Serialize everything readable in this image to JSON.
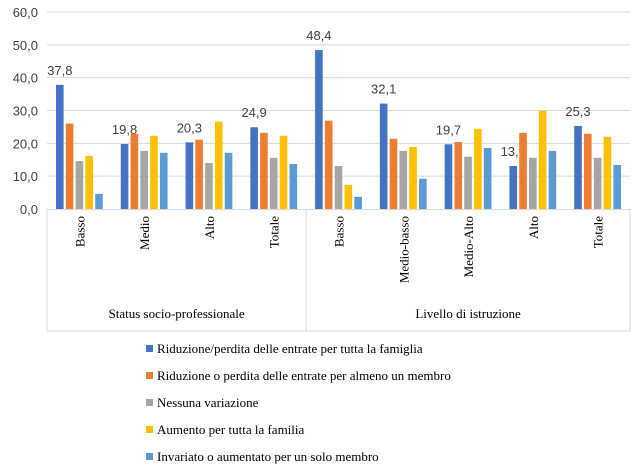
{
  "chart_data": {
    "type": "bar",
    "ylim": [
      0,
      60
    ],
    "yticks": [
      "0,0",
      "10,0",
      "20,0",
      "30,0",
      "40,0",
      "50,0",
      "60,0"
    ],
    "grid": true,
    "legend_placement": "bottom",
    "groups": [
      {
        "label": "Status socio-professionale",
        "categories": [
          "Basso",
          "Medio",
          "Alto",
          "Totale"
        ]
      },
      {
        "label": "Livello di istruzione",
        "categories": [
          "Basso",
          "Medio-basso",
          "Medio-Alto",
          "Alto",
          "Totale"
        ]
      }
    ],
    "series": [
      {
        "name": "Riduzione/perdita delle entrate per tutta la famiglia",
        "color": "#4472C4",
        "values": [
          37.8,
          19.8,
          20.3,
          24.9,
          48.4,
          32.1,
          19.7,
          13.1,
          25.3
        ],
        "labels": [
          "37,8",
          "19,8",
          "20,3",
          "24,9",
          "48,4",
          "32,1",
          "19,7",
          "13,1",
          "25,3"
        ]
      },
      {
        "name": "Riduzione o perdita delle entrate per almeno un membro",
        "color": "#ED7D31",
        "values": [
          26.0,
          22.9,
          21.1,
          23.2,
          26.9,
          21.4,
          20.4,
          23.2,
          22.9
        ]
      },
      {
        "name": "Nessuna variazione",
        "color": "#A5A5A5",
        "values": [
          14.6,
          17.7,
          14.0,
          15.6,
          13.1,
          17.7,
          15.9,
          15.6,
          15.6
        ]
      },
      {
        "name": "Aumento per tutta la familia",
        "color": "#FFC000",
        "values": [
          16.2,
          22.3,
          26.6,
          22.3,
          7.3,
          18.9,
          24.4,
          29.9,
          22.0
        ]
      },
      {
        "name": "Invariato o aumentato per un solo membro",
        "color": "#5B9BD5",
        "values": [
          4.6,
          17.1,
          17.1,
          13.7,
          3.7,
          9.2,
          18.6,
          17.7,
          13.4
        ]
      }
    ]
  }
}
